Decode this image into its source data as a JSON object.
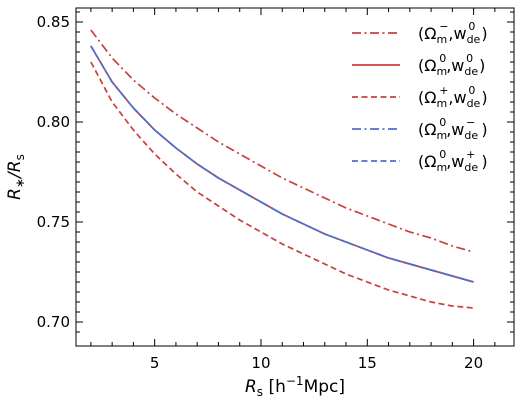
{
  "chart_data": {
    "type": "line",
    "xlabel": "R_s [h^-1 Mpc]",
    "ylabel": "R_*/R_s",
    "xlim": [
      1.3,
      21.9
    ],
    "ylim": [
      0.688,
      0.857
    ],
    "xticks": [
      5,
      10,
      15,
      20
    ],
    "yticks": [
      0.7,
      0.75,
      0.8,
      0.85
    ],
    "xtick_labels": [
      "5",
      "10",
      "15",
      "20"
    ],
    "ytick_labels": [
      "0.70",
      "0.75",
      "0.80",
      "0.85"
    ],
    "grid": false,
    "legend_position": "top-right",
    "x": [
      2,
      3,
      4,
      5,
      6,
      7,
      8,
      9,
      10,
      11,
      12,
      13,
      14,
      15,
      16,
      17,
      18,
      19,
      20
    ],
    "series": [
      {
        "label": "(Ω_m^-, w_de^0)",
        "color": "#c8413b",
        "style": "dashdot",
        "values": [
          0.846,
          0.832,
          0.821,
          0.812,
          0.804,
          0.797,
          0.79,
          0.784,
          0.778,
          0.772,
          0.767,
          0.762,
          0.757,
          0.753,
          0.749,
          0.745,
          0.742,
          0.738,
          0.735
        ]
      },
      {
        "label": "(Ω_m^0, w_de^0)",
        "color": "#c8413b",
        "style": "solid",
        "values": [
          0.838,
          0.82,
          0.807,
          0.796,
          0.787,
          0.779,
          0.772,
          0.766,
          0.76,
          0.754,
          0.749,
          0.744,
          0.74,
          0.736,
          0.732,
          0.729,
          0.726,
          0.723,
          0.72
        ]
      },
      {
        "label": "(Ω_m^+, w_de^0)",
        "color": "#c8413b",
        "style": "dashed",
        "values": [
          0.83,
          0.81,
          0.796,
          0.784,
          0.774,
          0.765,
          0.758,
          0.751,
          0.745,
          0.739,
          0.734,
          0.729,
          0.724,
          0.72,
          0.716,
          0.713,
          0.71,
          0.708,
          0.707
        ]
      },
      {
        "label": "(Ω_m^0, w_de^-)",
        "color": "#4f6fd0",
        "style": "dashdot",
        "values": [
          0.838,
          0.82,
          0.807,
          0.796,
          0.787,
          0.779,
          0.772,
          0.766,
          0.76,
          0.754,
          0.749,
          0.744,
          0.74,
          0.736,
          0.732,
          0.729,
          0.726,
          0.723,
          0.72
        ]
      },
      {
        "label": "(Ω_m^0, w_de^+)",
        "color": "#4f6fd0",
        "style": "dashed",
        "values": [
          0.838,
          0.82,
          0.807,
          0.796,
          0.787,
          0.779,
          0.772,
          0.766,
          0.76,
          0.754,
          0.749,
          0.744,
          0.74,
          0.736,
          0.732,
          0.729,
          0.726,
          0.723,
          0.72
        ]
      }
    ],
    "legend_text": [
      {
        "open": "(Ω",
        "sub1": "m",
        "sup1": "−",
        "mid": ",w",
        "sub2": "de",
        "sup2": "0",
        "close": ")"
      },
      {
        "open": "(Ω",
        "sub1": "m",
        "sup1": "0",
        "mid": ",w",
        "sub2": "de",
        "sup2": "0",
        "close": ")"
      },
      {
        "open": "(Ω",
        "sub1": "m",
        "sup1": "+",
        "mid": ",w",
        "sub2": "de",
        "sup2": "0",
        "close": ")"
      },
      {
        "open": "(Ω",
        "sub1": "m",
        "sup1": "0",
        "mid": ",w",
        "sub2": "de",
        "sup2": "−",
        "close": ")"
      },
      {
        "open": "(Ω",
        "sub1": "m",
        "sup1": "0",
        "mid": ",w",
        "sub2": "de",
        "sup2": "+",
        "close": ")"
      }
    ],
    "axis_text": {
      "x_main": "R",
      "x_sub": "s",
      "x_rest": " [h",
      "x_sup": "−1",
      "x_unit": "Mpc]",
      "y_r1": "R",
      "y_r1_sub": "∗",
      "y_slash": "/R",
      "y_r2_sub": "s"
    }
  }
}
